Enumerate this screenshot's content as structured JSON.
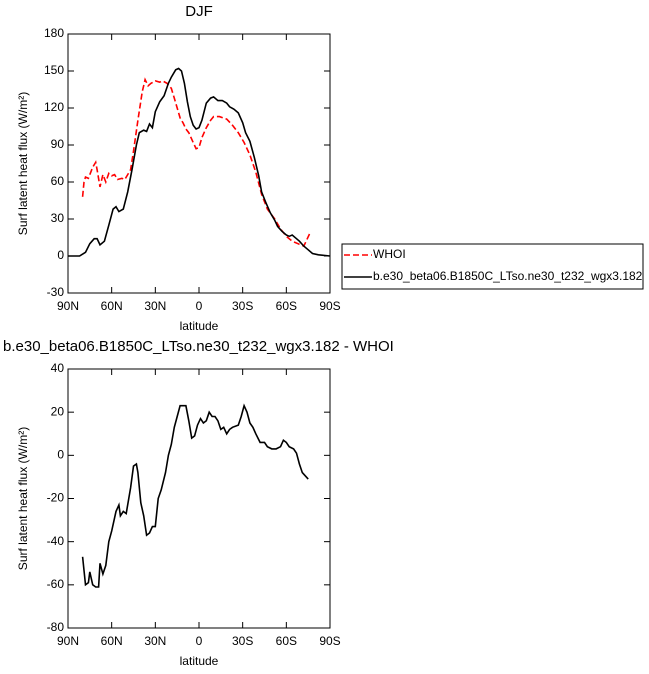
{
  "chart_data": [
    {
      "type": "line",
      "title": "DJF",
      "xlabel": "latitude",
      "ylabel": "Surf latent heat flux (W/m²)",
      "xlim": [
        90,
        -90
      ],
      "xticks": [
        {
          "value": 90,
          "label": "90N"
        },
        {
          "value": 60,
          "label": "60N"
        },
        {
          "value": 30,
          "label": "30N"
        },
        0,
        {
          "value": -30,
          "label": "30S"
        },
        {
          "value": -60,
          "label": "60S"
        },
        {
          "value": -90,
          "label": "90S"
        }
      ],
      "ylim": [
        -30,
        180
      ],
      "yticks": [
        -30,
        0,
        30,
        60,
        90,
        120,
        150,
        180
      ],
      "legend": "right",
      "series": [
        {
          "name": "WHOI",
          "color": "#ff0000",
          "dash": "dashed",
          "x": [
            80,
            79,
            78,
            76,
            73,
            71,
            70,
            68,
            66,
            64,
            62,
            60,
            58,
            56,
            53,
            51,
            49,
            47,
            45,
            42,
            39,
            37,
            35,
            33,
            30,
            27,
            25,
            22,
            19,
            17,
            15,
            13,
            11,
            9,
            7,
            4,
            2,
            0,
            -2,
            -5,
            -8,
            -10,
            -14,
            -19,
            -23,
            -27,
            -31,
            -35,
            -39,
            -43,
            -47,
            -52,
            -56,
            -60,
            -64,
            -68,
            -72,
            -76
          ],
          "values": [
            48,
            60,
            64,
            63,
            72,
            76,
            70,
            56,
            66,
            60,
            67,
            65,
            66,
            62,
            63,
            62,
            66,
            70,
            85,
            110,
            133,
            143,
            138,
            140,
            142,
            141,
            142,
            140,
            136,
            128,
            120,
            112,
            108,
            103,
            100,
            92,
            87,
            88,
            96,
            104,
            110,
            113,
            113,
            111,
            106,
            100,
            92,
            82,
            68,
            50,
            38,
            30,
            22,
            16,
            12,
            10,
            8,
            18
          ]
        },
        {
          "name": "b.e30_beta06.B1850C_LTso.ne30_t232_wgx3.182",
          "color": "#000000",
          "dash": "solid",
          "x": [
            90,
            82,
            78,
            75,
            72,
            70,
            68,
            65,
            62,
            59,
            57,
            55,
            52,
            49,
            46,
            43,
            41,
            38,
            36,
            34,
            32,
            30,
            27,
            24,
            21,
            19,
            16,
            14,
            12,
            10,
            8,
            6,
            4,
            2,
            0,
            -2,
            -5,
            -8,
            -10,
            -13,
            -16,
            -19,
            -21,
            -24,
            -27,
            -30,
            -32,
            -35,
            -38,
            -41,
            -43,
            -46,
            -49,
            -52,
            -54,
            -57,
            -60,
            -62,
            -64,
            -67,
            -69,
            -72,
            -75,
            -78,
            -82,
            -90
          ],
          "values": [
            0,
            0,
            3,
            10,
            14,
            14,
            9,
            12,
            25,
            38,
            40,
            36,
            38,
            52,
            70,
            90,
            100,
            102,
            101,
            107,
            104,
            117,
            125,
            130,
            140,
            145,
            151,
            152,
            150,
            140,
            125,
            113,
            106,
            103,
            104,
            110,
            124,
            128,
            129,
            126,
            126,
            124,
            121,
            119,
            116,
            108,
            100,
            93,
            80,
            65,
            52,
            43,
            35,
            29,
            24,
            20,
            17,
            16,
            17,
            14,
            12,
            8,
            5,
            2,
            1,
            0
          ]
        }
      ]
    },
    {
      "type": "line",
      "title": "b.e30_beta06.B1850C_LTso.ne30_t232_wgx3.182 - WHOI",
      "xlabel": "latitude",
      "ylabel": "Surf latent heat flux (W/m²)",
      "xlim": [
        90,
        -90
      ],
      "xticks": [
        {
          "value": 90,
          "label": "90N"
        },
        {
          "value": 60,
          "label": "60N"
        },
        {
          "value": 30,
          "label": "30N"
        },
        0,
        {
          "value": -30,
          "label": "30S"
        },
        {
          "value": -60,
          "label": "60S"
        },
        {
          "value": -90,
          "label": "90S"
        }
      ],
      "ylim": [
        -80,
        40
      ],
      "yticks": [
        -80,
        -60,
        -40,
        -20,
        0,
        20,
        40
      ],
      "series": [
        {
          "color": "#000000",
          "dash": "solid",
          "x": [
            80,
            78,
            76,
            75,
            73,
            71,
            69,
            68,
            66,
            64,
            62,
            60,
            57,
            55,
            54,
            52,
            50,
            47,
            45,
            43,
            42,
            40,
            38,
            36,
            34,
            32,
            30,
            28,
            26,
            23,
            21,
            19,
            17,
            15,
            13,
            9,
            7,
            5,
            3,
            1,
            -1,
            -3,
            -5,
            -7,
            -9,
            -11,
            -13,
            -15,
            -17,
            -19,
            -21,
            -23,
            -27,
            -29,
            -31,
            -33,
            -35,
            -37,
            -39,
            -42,
            -45,
            -47,
            -50,
            -53,
            -56,
            -58,
            -60,
            -62,
            -65,
            -67,
            -69,
            -71,
            -75
          ],
          "values": [
            -47,
            -60,
            -59,
            -54,
            -60,
            -61,
            -61,
            -50,
            -55,
            -51,
            -40,
            -35,
            -26,
            -23,
            -28,
            -26,
            -27,
            -15,
            -5,
            -4,
            -8,
            -22,
            -28,
            -37,
            -36,
            -33,
            -33,
            -20,
            -16,
            -8,
            0,
            5,
            13,
            18,
            23,
            23,
            16,
            8,
            9,
            14,
            17,
            15,
            16,
            20,
            18,
            18,
            16,
            12,
            13,
            10,
            12,
            13,
            14,
            18,
            23,
            20,
            15,
            13,
            10,
            6,
            6,
            4,
            3,
            3,
            4,
            7,
            6,
            4,
            3,
            1,
            -4,
            -8,
            -11
          ]
        }
      ]
    }
  ]
}
